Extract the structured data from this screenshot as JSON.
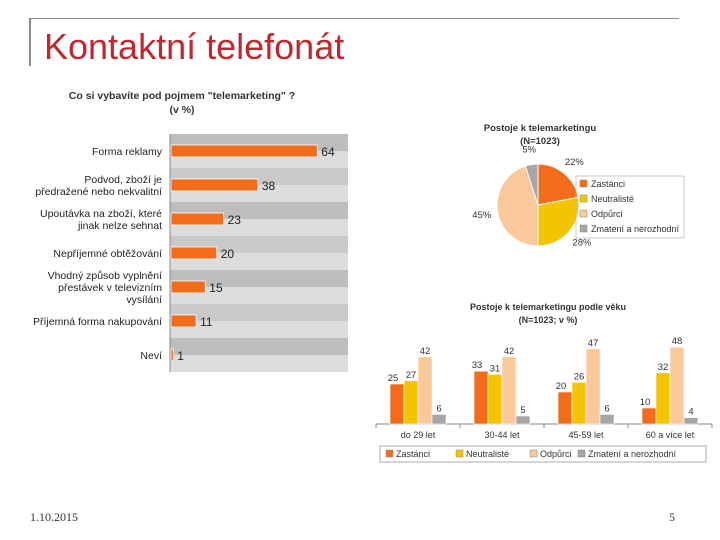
{
  "slide": {
    "title": "Kontaktní telefonát",
    "date": "1.10.2015",
    "page_number": "5"
  },
  "colors": {
    "title_red": "#c0282d",
    "orange": "#f26c1c",
    "peach": "#f9c89b",
    "yellow": "#f5c400",
    "gray": "#a6a6a6",
    "panel_gray": "#c8c8c8"
  },
  "chart_data": [
    {
      "type": "bar",
      "orientation": "horizontal",
      "title": "Co si vybavíte pod pojmem \"telemarketing\" ?",
      "subtitle": "(v %)",
      "categories": [
        "Forma reklamy",
        "Podvod, zboží je předražené nebo nekvalitní",
        "Upoutávka na zboží, které jinak nelze sehnat",
        "Nepříjemné obtěžování",
        "Vhodný způsob vyplnění přestávek v televizním vysílání",
        "Příjemná forma nakupování",
        "Neví"
      ],
      "values": [
        64,
        38,
        23,
        20,
        15,
        11,
        1
      ],
      "xlim": [
        0,
        70
      ]
    },
    {
      "type": "pie",
      "title": "Postoje k telemarketingu",
      "subtitle": "(N=1023)",
      "slices": [
        {
          "label": "Zastánci",
          "value": 22,
          "value_label": "22%",
          "color": "#f26c1c"
        },
        {
          "label": "Neutralisté",
          "value": 28,
          "value_label": "28%",
          "color": "#f5c400"
        },
        {
          "label": "Odpůrci",
          "value": 45,
          "value_label": "45%",
          "color": "#f9c89b"
        },
        {
          "label": "Zmatení a nerozhodní",
          "value": 5,
          "value_label": "5%",
          "color": "#a6a6a6"
        }
      ],
      "legend_placement": "right"
    },
    {
      "type": "bar",
      "title": "Postoje k telemarketingu podle věku",
      "subtitle": "(N=1023; v %)",
      "categories": [
        "do 29 let",
        "30-44 let",
        "45-59 let",
        "60 a více let"
      ],
      "series": [
        {
          "name": "Zastánci",
          "values": [
            25,
            33,
            20,
            10
          ],
          "color": "#f26c1c"
        },
        {
          "name": "Neutralisté",
          "values": [
            27,
            31,
            26,
            32
          ],
          "color": "#f5c400"
        },
        {
          "name": "Odpůrci",
          "values": [
            42,
            42,
            47,
            48
          ],
          "color": "#f9c89b"
        },
        {
          "name": "Zmatení a nerozhodní",
          "values": [
            6,
            5,
            6,
            4
          ],
          "color": "#a6a6a6"
        }
      ],
      "ylim": [
        0,
        50
      ],
      "legend_placement": "bottom"
    }
  ]
}
